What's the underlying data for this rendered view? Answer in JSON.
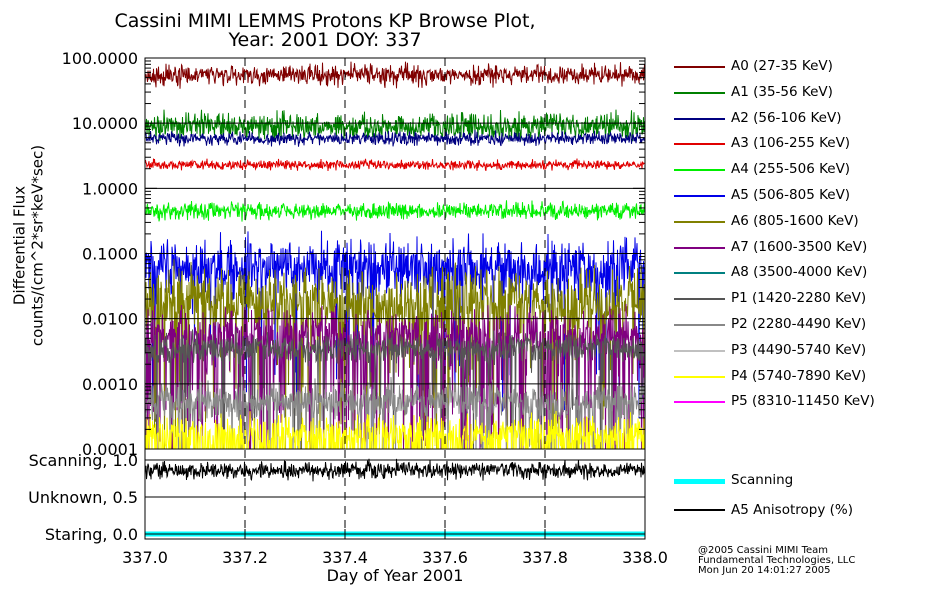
{
  "title_line1": "Cassini MIMI LEMMS Protons KP Browse Plot,",
  "title_line2": "Year: 2001 DOY: 337",
  "credit": [
    "@2005 Cassini MIMI Team",
    "Fundamental Technologies, LLC",
    "Mon Jun 20 14:01:27 2005"
  ],
  "chart_data": [
    {
      "type": "line",
      "xlabel": "",
      "ylabel": "Differential Flux counts/(cm^2*sr*keV*sec)",
      "ylabel_line1": "Differential Flux",
      "ylabel_line2": "counts/(cm^2*sr*keV*sec)",
      "ylim": [
        0.0001,
        100
      ],
      "yscale": "log",
      "y_ticks": [
        "100.0000",
        "10.0000",
        "1.0000",
        "0.1000",
        "0.0100",
        "0.0010",
        "0.0001"
      ],
      "xlim": [
        337.0,
        338.0
      ],
      "grid": true,
      "series": [
        {
          "name": "A0 (27-35 KeV)",
          "color": "#800000",
          "level": 55,
          "spread": 0.11,
          "lows": 0
        },
        {
          "name": "A1 (35-56 KeV)",
          "color": "#008000",
          "level": 9,
          "spread": 0.14,
          "lows": 0
        },
        {
          "name": "A2 (56-106 KeV)",
          "color": "#000080",
          "level": 5.8,
          "spread": 0.07,
          "lows": 0
        },
        {
          "name": "A3 (106-255 KeV)",
          "color": "#e00000",
          "level": 2.3,
          "spread": 0.05,
          "lows": 0
        },
        {
          "name": "A4 (255-506 KeV)",
          "color": "#00ee00",
          "level": 0.45,
          "spread": 0.09,
          "lows": 0
        },
        {
          "name": "A5 (506-805 KeV)",
          "color": "#0000e8",
          "level": 0.06,
          "spread": 0.32,
          "lows": 0.05
        },
        {
          "name": "A6 (805-1600 KeV)",
          "color": "#808000",
          "level": 0.018,
          "spread": 0.35,
          "lows": 0.12
        },
        {
          "name": "A7 (1600-3500 KeV)",
          "color": "#800080",
          "level": 0.006,
          "spread": 0.28,
          "lows": 0.2
        },
        {
          "name": "A8 (3500-4000 KeV)",
          "color": "#008080",
          "level": null,
          "spread": 0,
          "lows": 0
        },
        {
          "name": "P1 (1420-2280 KeV)",
          "color": "#555555",
          "level": 0.0035,
          "spread": 0.16,
          "lows": 0.06
        },
        {
          "name": "P2 (2280-4490 KeV)",
          "color": "#888888",
          "level": 0.00055,
          "spread": 0.2,
          "lows": 0.08
        },
        {
          "name": "P3 (4490-5740 KeV)",
          "color": "#c0c0c0",
          "level": null,
          "spread": 0,
          "lows": 0
        },
        {
          "name": "P4 (5740-7890 KeV)",
          "color": "#ffff00",
          "level": 0.00018,
          "spread": 0.18,
          "lows": 0.3
        },
        {
          "name": "P5 (8310-11450 KeV)",
          "color": "#ff00ff",
          "level": null,
          "spread": 0,
          "lows": 0
        }
      ]
    },
    {
      "type": "line",
      "xlabel": "Day of Year 2001",
      "x_ticks": [
        "337.0",
        "337.2",
        "337.4",
        "337.6",
        "337.8",
        "338.0"
      ],
      "xlim": [
        337.0,
        338.0
      ],
      "y_ticks": [
        "Scanning, 1.0",
        "Unknown, 0.5",
        "Staring, 0.0"
      ],
      "ylim": [
        0.0,
        1.0
      ],
      "series": [
        {
          "name": "Scanning",
          "color": "#00ffff",
          "value": 0.0
        },
        {
          "name": "A5 Anisotropy (%)",
          "color": "#000000",
          "value": 0.86,
          "spread": 0.08
        }
      ]
    }
  ]
}
